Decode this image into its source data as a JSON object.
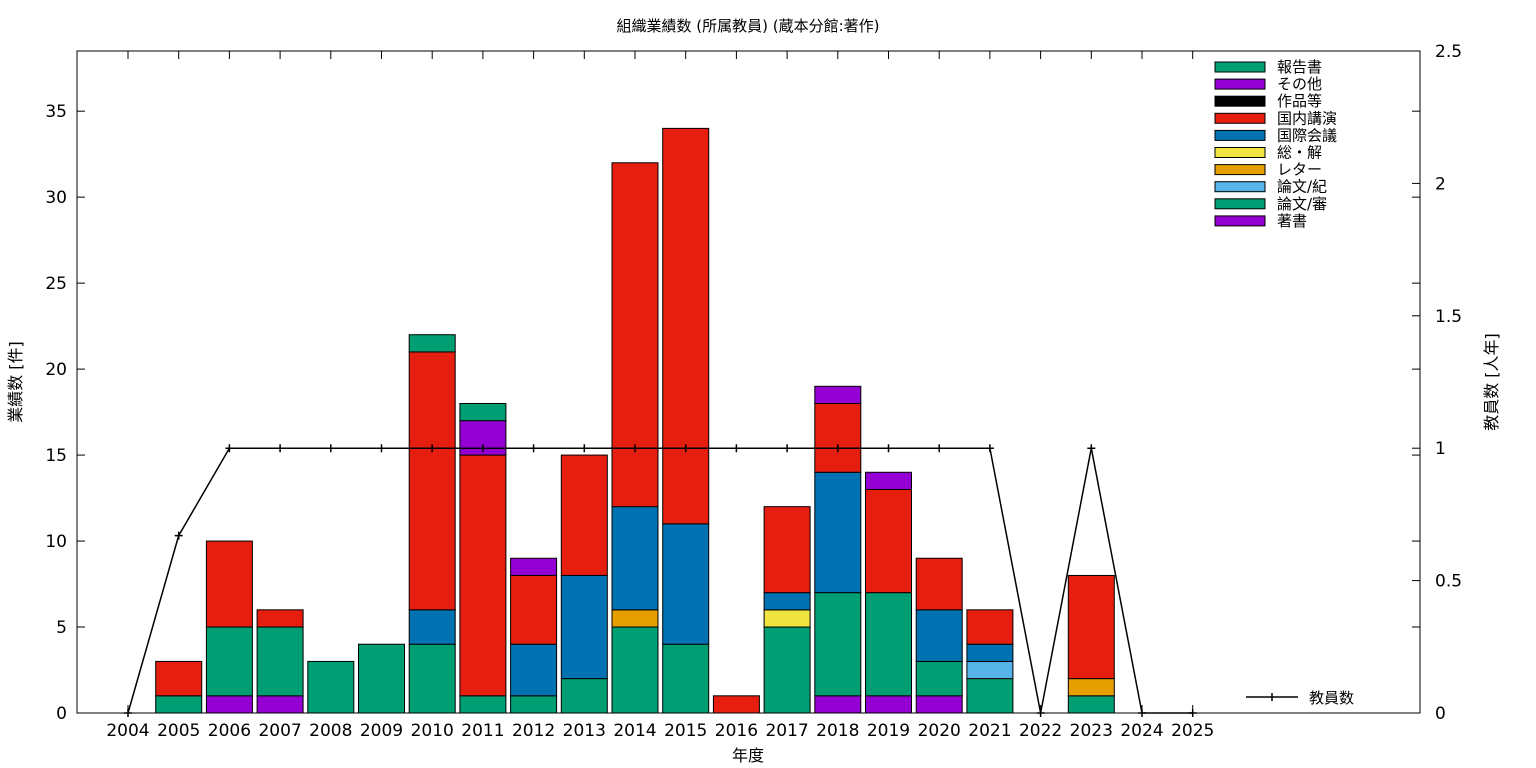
{
  "chart_data": {
    "type": "bar",
    "stacked": true,
    "title": "組織業績数 (所属教員) (蔵本分館:著作)",
    "xlabel": "年度",
    "ylabel": "業績数 [件]",
    "y2label": "教員数 [人年]",
    "categories": [
      "2004",
      "2005",
      "2006",
      "2007",
      "2008",
      "2009",
      "2010",
      "2011",
      "2012",
      "2013",
      "2014",
      "2015",
      "2016",
      "2017",
      "2018",
      "2019",
      "2020",
      "2021",
      "2022",
      "2023",
      "2024",
      "2025"
    ],
    "ylim": [
      0,
      38.5
    ],
    "yticks": [
      0,
      5,
      10,
      15,
      20,
      25,
      30,
      35
    ],
    "y2lim": [
      0,
      2.5
    ],
    "y2ticks": [
      "0",
      "0.5",
      "1",
      "1.5",
      "2",
      "2.5"
    ],
    "legend_position": "top-right",
    "series": [
      {
        "name": "著書",
        "color": "#9400d3",
        "values": [
          0,
          0,
          1,
          1,
          0,
          0,
          0,
          0,
          0,
          0,
          0,
          0,
          0,
          0,
          1,
          1,
          1,
          0,
          0,
          0,
          0,
          0
        ]
      },
      {
        "name": "論文/審",
        "color": "#009e73",
        "values": [
          0,
          1,
          4,
          4,
          3,
          4,
          4,
          1,
          1,
          2,
          5,
          4,
          0,
          5,
          6,
          6,
          2,
          2,
          0,
          1,
          0,
          0
        ]
      },
      {
        "name": "論文/紀",
        "color": "#56b4e9",
        "values": [
          0,
          0,
          0,
          0,
          0,
          0,
          0,
          0,
          0,
          0,
          0,
          0,
          0,
          0,
          0,
          0,
          0,
          1,
          0,
          0,
          0,
          0
        ]
      },
      {
        "name": "レター",
        "color": "#e69f00",
        "values": [
          0,
          0,
          0,
          0,
          0,
          0,
          0,
          0,
          0,
          0,
          1,
          0,
          0,
          0,
          0,
          0,
          0,
          0,
          0,
          1,
          0,
          0
        ]
      },
      {
        "name": "総・解",
        "color": "#f0e442",
        "values": [
          0,
          0,
          0,
          0,
          0,
          0,
          0,
          0,
          0,
          0,
          0,
          0,
          0,
          1,
          0,
          0,
          0,
          0,
          0,
          0,
          0,
          0
        ]
      },
      {
        "name": "国際会議",
        "color": "#0072b2",
        "values": [
          0,
          0,
          0,
          0,
          0,
          0,
          2,
          0,
          3,
          6,
          6,
          7,
          0,
          1,
          7,
          0,
          3,
          1,
          0,
          0,
          0,
          0
        ]
      },
      {
        "name": "国内講演",
        "color": "#e51e10",
        "values": [
          0,
          2,
          5,
          1,
          0,
          0,
          15,
          14,
          4,
          7,
          20,
          23,
          1,
          5,
          4,
          6,
          3,
          2,
          0,
          6,
          0,
          0
        ]
      },
      {
        "name": "作品等",
        "color": "#000000",
        "values": [
          0,
          0,
          0,
          0,
          0,
          0,
          0,
          0,
          0,
          0,
          0,
          0,
          0,
          0,
          0,
          0,
          0,
          0,
          0,
          0,
          0,
          0
        ]
      },
      {
        "name": "その他",
        "color": "#9400d3",
        "values": [
          0,
          0,
          0,
          0,
          0,
          0,
          0,
          2,
          1,
          0,
          0,
          0,
          0,
          0,
          1,
          1,
          0,
          0,
          0,
          0,
          0,
          0
        ]
      },
      {
        "name": "報告書",
        "color": "#009e73",
        "values": [
          0,
          0,
          0,
          0,
          0,
          0,
          1,
          1,
          0,
          0,
          0,
          0,
          0,
          0,
          0,
          0,
          0,
          0,
          0,
          0,
          0,
          0
        ]
      }
    ],
    "line_series": {
      "name": "教員数",
      "axis": "y2",
      "color": "#000000",
      "values": [
        0,
        0.67,
        1,
        1,
        1,
        1,
        1,
        1,
        1,
        1,
        1,
        1,
        1,
        1,
        1,
        1,
        1,
        1,
        0,
        1,
        0,
        0
      ]
    }
  }
}
